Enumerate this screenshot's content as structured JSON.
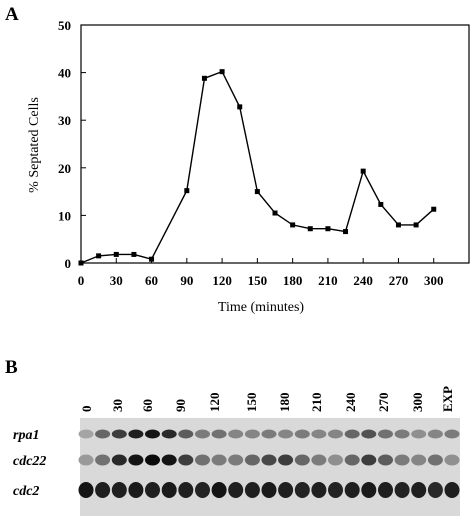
{
  "panels": {
    "a": {
      "label": "A"
    },
    "b": {
      "label": "B"
    }
  },
  "chart_data": {
    "type": "line",
    "title": "",
    "xlabel": "Time (minutes)",
    "ylabel": "% Septated Cells",
    "xlim": [
      0,
      330
    ],
    "ylim": [
      0,
      50
    ],
    "xticks": [
      0,
      30,
      60,
      90,
      120,
      150,
      180,
      210,
      240,
      270,
      300
    ],
    "yticks": [
      0,
      10,
      20,
      30,
      40,
      50
    ],
    "grid": false,
    "series": [
      {
        "x": [
          0,
          15,
          30,
          45,
          60,
          90,
          105,
          120,
          135,
          150,
          165,
          180,
          195,
          210,
          225,
          240,
          255,
          270,
          285,
          300
        ],
        "y": [
          0,
          1.5,
          1.8,
          1.8,
          0.8,
          15.2,
          38.8,
          40.2,
          32.8,
          15,
          10.5,
          8,
          7.2,
          7.2,
          6.6,
          19.3,
          12.3,
          8,
          8,
          11.3
        ]
      }
    ]
  },
  "blot": {
    "lanes": [
      "0",
      "30",
      "60",
      "90",
      "120",
      "150",
      "180",
      "210",
      "240",
      "270",
      "300",
      "EXP"
    ],
    "rows": [
      {
        "gene": "rpa1",
        "intensity": [
          0.25,
          0.55,
          0.75,
          0.9,
          0.95,
          0.85,
          0.6,
          0.45,
          0.5,
          0.4,
          0.4,
          0.45,
          0.4,
          0.45,
          0.4,
          0.4,
          0.55,
          0.65,
          0.5,
          0.45,
          0.35,
          0.4,
          0.45
        ]
      },
      {
        "gene": "cdc22",
        "intensity": [
          0.3,
          0.5,
          0.85,
          0.95,
          1.0,
          0.95,
          0.75,
          0.5,
          0.45,
          0.45,
          0.55,
          0.7,
          0.75,
          0.55,
          0.45,
          0.35,
          0.55,
          0.75,
          0.6,
          0.45,
          0.4,
          0.5,
          0.35
        ]
      },
      {
        "gene": "cdc2",
        "intensity": [
          0.95,
          0.9,
          0.9,
          0.92,
          0.9,
          0.92,
          0.9,
          0.88,
          0.95,
          0.9,
          0.9,
          0.92,
          0.9,
          0.88,
          0.9,
          0.88,
          0.9,
          0.92,
          0.9,
          0.88,
          0.9,
          0.85,
          0.9
        ]
      }
    ]
  }
}
